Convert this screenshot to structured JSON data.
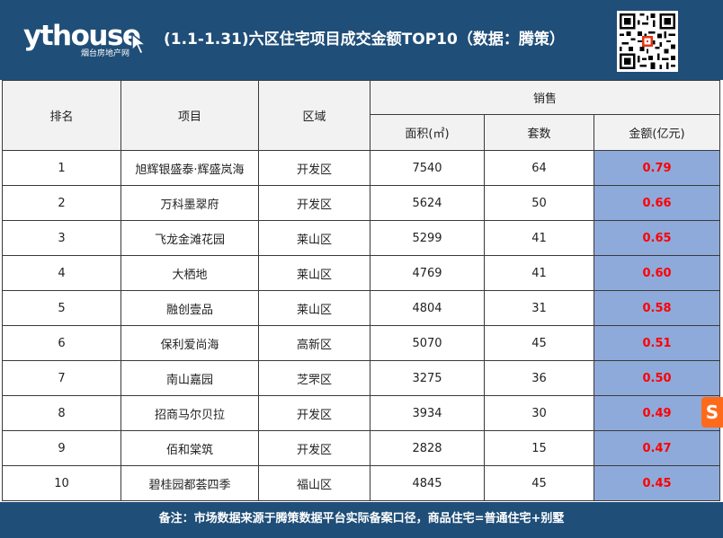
{
  "header": {
    "logo_text": "ythouse",
    "logo_sub": "烟台房地产网",
    "title": "(1.1-1.31)六区住宅项目成交金额TOP10（数据：腾策）",
    "bg_color": "#1f4e78"
  },
  "table": {
    "headers": {
      "rank": "排名",
      "project": "项目",
      "district": "区域",
      "sales": "销售",
      "area": "面积(㎡)",
      "units": "套数",
      "amount": "金额(亿元)"
    },
    "rows": [
      {
        "rank": "1",
        "project": "旭辉银盛泰·辉盛岚海",
        "district": "开发区",
        "area": "7540",
        "units": "64",
        "amount": "0.79"
      },
      {
        "rank": "2",
        "project": "万科墨翠府",
        "district": "开发区",
        "area": "5624",
        "units": "50",
        "amount": "0.66"
      },
      {
        "rank": "3",
        "project": "飞龙金滩花园",
        "district": "莱山区",
        "area": "5299",
        "units": "41",
        "amount": "0.65"
      },
      {
        "rank": "4",
        "project": "大栖地",
        "district": "莱山区",
        "area": "4769",
        "units": "41",
        "amount": "0.60"
      },
      {
        "rank": "5",
        "project": "融创壹品",
        "district": "莱山区",
        "area": "4804",
        "units": "31",
        "amount": "0.58"
      },
      {
        "rank": "6",
        "project": "保利爱尚海",
        "district": "高新区",
        "area": "5070",
        "units": "45",
        "amount": "0.51"
      },
      {
        "rank": "7",
        "project": "南山嘉园",
        "district": "芝罘区",
        "area": "3275",
        "units": "36",
        "amount": "0.50"
      },
      {
        "rank": "8",
        "project": "招商马尔贝拉",
        "district": "开发区",
        "area": "3934",
        "units": "30",
        "amount": "0.49"
      },
      {
        "rank": "9",
        "project": "佰和棠筑",
        "district": "开发区",
        "area": "2828",
        "units": "15",
        "amount": "0.47"
      },
      {
        "rank": "10",
        "project": "碧桂园都荟四季",
        "district": "福山区",
        "area": "4845",
        "units": "45",
        "amount": "0.45"
      }
    ],
    "amount_cell_color": "#8eaadb",
    "amount_text_color": "#ff0000"
  },
  "footer": {
    "note": "备注：市场数据来源于腾策数据平台实际备案口径，商品住宅=普通住宅+别墅"
  },
  "side_badge": {
    "label": "S",
    "icon": "sogou-badge-icon"
  }
}
